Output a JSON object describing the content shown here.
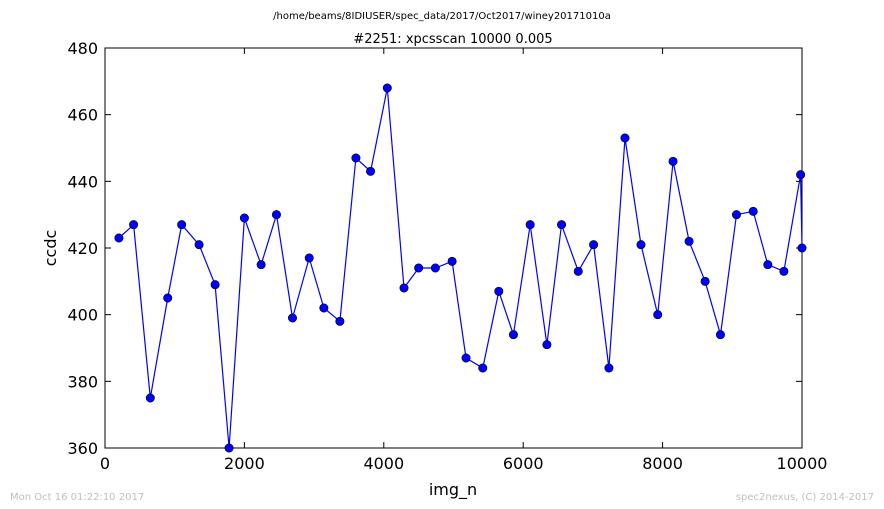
{
  "suptitle": "/home/beams/8IDIUSER/spec_data/2017/Oct2017/winey20171010a",
  "footer": {
    "left": "Mon Oct 16 01:22:10 2017",
    "right": "spec2nexus, (C) 2014-2017"
  },
  "colors": {
    "series": "#0000ff",
    "marker": "#0000ff",
    "axes": "#000000"
  },
  "chart_data": {
    "type": "line",
    "title": "#2251: xpcsscan 10000 0.005",
    "xlabel": "img_n",
    "ylabel": "ccdc",
    "xlim": [
      0,
      10000
    ],
    "ylim": [
      360,
      480
    ],
    "xticks": [
      0,
      2000,
      4000,
      6000,
      8000,
      10000
    ],
    "yticks": [
      360,
      380,
      400,
      420,
      440,
      460,
      480
    ],
    "grid": false,
    "series": [
      {
        "markers": "circle",
        "x": [
          200,
          410,
          650,
          900,
          1100,
          1350,
          1580,
          1780,
          2000,
          2240,
          2460,
          2690,
          2930,
          3140,
          3370,
          3600,
          3810,
          4050,
          4290,
          4500,
          4740,
          4980,
          5180,
          5420,
          5650,
          5860,
          6100,
          6340,
          6550,
          6790,
          7010,
          7230,
          7460,
          7690,
          7930,
          8150,
          8380,
          8610,
          8830,
          9060,
          9300,
          9510,
          9740,
          9980,
          10000
        ],
        "values": [
          423,
          427,
          375,
          405,
          427,
          421,
          409,
          360,
          429,
          415,
          430,
          399,
          417,
          402,
          398,
          447,
          443,
          468,
          408,
          414,
          414,
          416,
          387,
          384,
          407,
          394,
          427,
          391,
          427,
          413,
          421,
          384,
          453,
          421,
          400,
          446,
          422,
          410,
          394,
          430,
          431,
          415,
          413,
          442,
          420
        ]
      }
    ]
  }
}
